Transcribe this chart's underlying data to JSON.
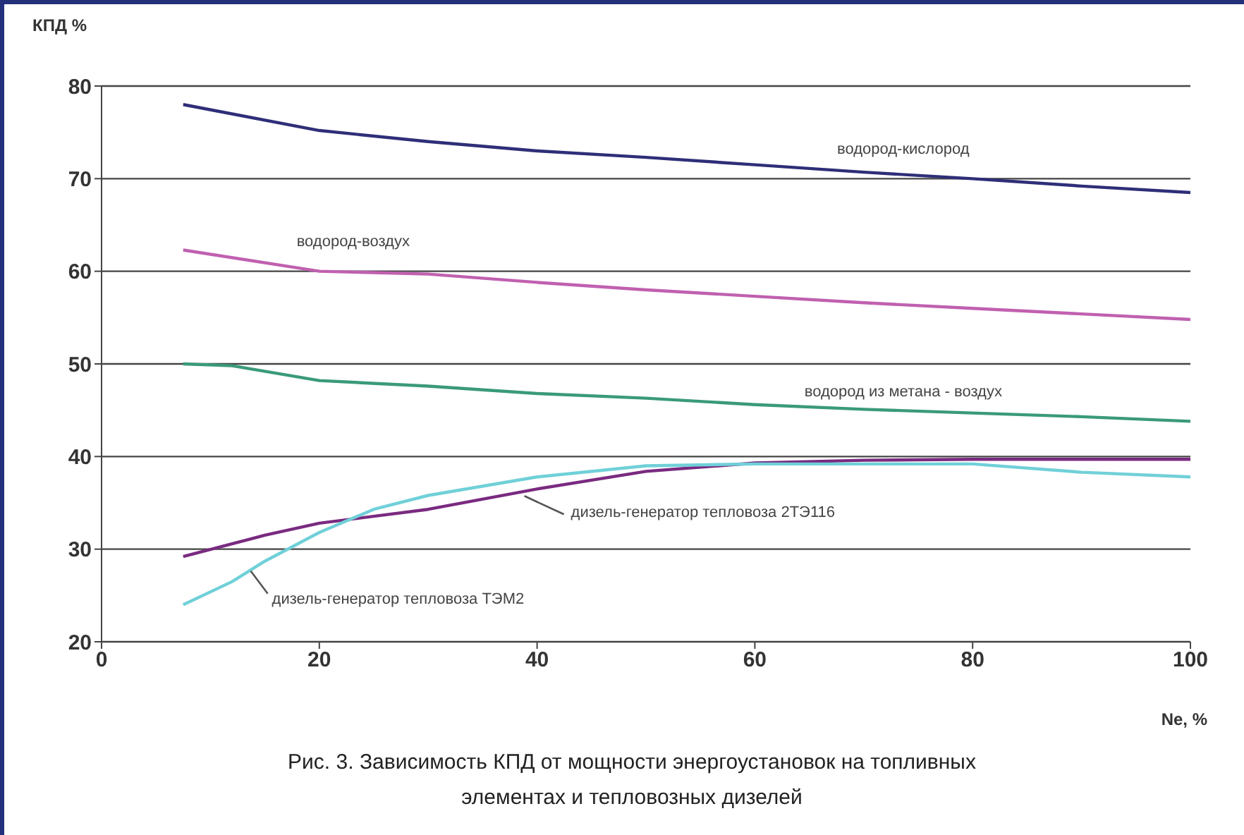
{
  "chart_data": {
    "type": "line",
    "ylabel": "КПД %",
    "xlabel": "Ne, %",
    "annotations": [
      "Рис. 3. Зависимость КПД от мощности энергоустановок на топливных элементах и тепловозных дизелей"
    ],
    "xlim": [
      0,
      100
    ],
    "xticks": [
      0,
      20,
      40,
      60,
      80,
      100
    ],
    "ylim": [
      20,
      80
    ],
    "yticks": [
      20,
      30,
      40,
      50,
      60,
      70,
      80
    ],
    "grid": "y",
    "marker": "none",
    "line_style": "solid",
    "series": [
      {
        "name": "водород-кислород",
        "color": "#2e2e78",
        "x": [
          7.5,
          20,
          30,
          40,
          50,
          60,
          70,
          80,
          90,
          100
        ],
        "values": [
          78,
          75.2,
          74,
          73,
          72.3,
          71.5,
          70.7,
          70,
          69.2,
          68.5
        ]
      },
      {
        "name": "водород-воздух",
        "color": "#c060b0",
        "x": [
          7.5,
          20,
          30,
          40,
          50,
          60,
          70,
          80,
          90,
          100
        ],
        "values": [
          62.3,
          60,
          59.7,
          58.8,
          58,
          57.3,
          56.6,
          56,
          55.4,
          54.8
        ]
      },
      {
        "name": "водород из метана - воздух",
        "color": "#3a9a7a",
        "x": [
          7.5,
          12,
          20,
          30,
          40,
          50,
          60,
          70,
          80,
          90,
          100
        ],
        "values": [
          50,
          49.8,
          48.2,
          47.6,
          46.8,
          46.3,
          45.6,
          45.1,
          44.7,
          44.3,
          43.8
        ]
      },
      {
        "name": "дизель-генератор тепловоза 2ТЭ116",
        "color": "#7a2a80",
        "x": [
          7.5,
          15,
          20,
          30,
          40,
          50,
          60,
          70,
          80,
          100
        ],
        "values": [
          29.2,
          31.5,
          32.8,
          34.3,
          36.5,
          38.4,
          39.3,
          39.6,
          39.7,
          39.7
        ]
      },
      {
        "name": "дизель-генератор тепловоза ТЭМ2",
        "color": "#70d0d8",
        "x": [
          7.5,
          12,
          15,
          20,
          25,
          30,
          40,
          50,
          60,
          80,
          90,
          100
        ],
        "values": [
          24,
          26.5,
          28.7,
          31.8,
          34.3,
          35.8,
          37.8,
          39,
          39.2,
          39.2,
          38.3,
          37.8
        ]
      }
    ]
  }
}
